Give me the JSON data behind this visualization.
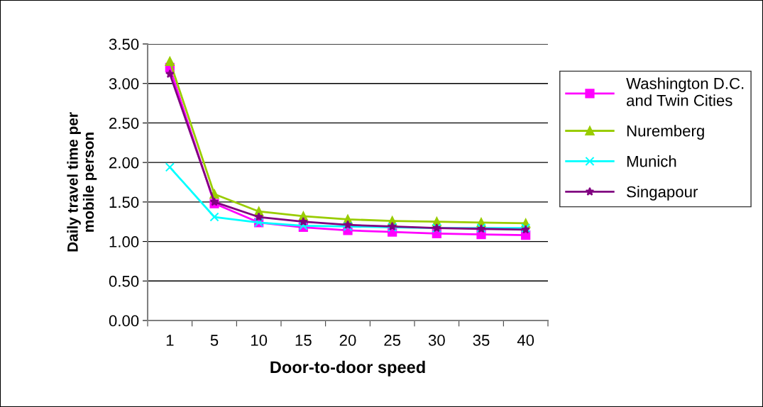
{
  "chart_data": {
    "type": "line",
    "xlabel": "Door-to-door speed",
    "ylabel": "Daily travel time per\nmobile person",
    "categories": [
      "1",
      "5",
      "10",
      "15",
      "20",
      "25",
      "30",
      "35",
      "40"
    ],
    "ylim": [
      0,
      3.5
    ],
    "yticks": [
      {
        "value": 0,
        "label": "0.00"
      },
      {
        "value": 0.5,
        "label": "0.50"
      },
      {
        "value": 1,
        "label": "1.00"
      },
      {
        "value": 1.5,
        "label": "1.50"
      },
      {
        "value": 2,
        "label": "2.00"
      },
      {
        "value": 2.5,
        "label": "2.50"
      },
      {
        "value": 3,
        "label": "3.00"
      },
      {
        "value": 3.5,
        "label": "3.50"
      }
    ],
    "grid": "y",
    "legend": "right",
    "line_style": "solid",
    "series": [
      {
        "name": "Washington D.C.\nand Twin Cities",
        "color": "#ff00ff",
        "marker": "square",
        "values": [
          3.2,
          1.48,
          1.24,
          1.18,
          1.14,
          1.12,
          1.1,
          1.09,
          1.08
        ]
      },
      {
        "name": "Nuremberg",
        "color": "#99cc00",
        "marker": "triangle",
        "values": [
          3.28,
          1.6,
          1.38,
          1.32,
          1.28,
          1.26,
          1.25,
          1.24,
          1.23
        ]
      },
      {
        "name": "Munich",
        "color": "#00ffff",
        "marker": "cross",
        "values": [
          1.94,
          1.31,
          1.24,
          1.2,
          1.19,
          1.18,
          1.17,
          1.17,
          1.17
        ]
      },
      {
        "name": "Singapour",
        "color": "#800080",
        "marker": "star",
        "values": [
          3.12,
          1.5,
          1.31,
          1.25,
          1.21,
          1.19,
          1.17,
          1.16,
          1.15
        ]
      }
    ]
  }
}
